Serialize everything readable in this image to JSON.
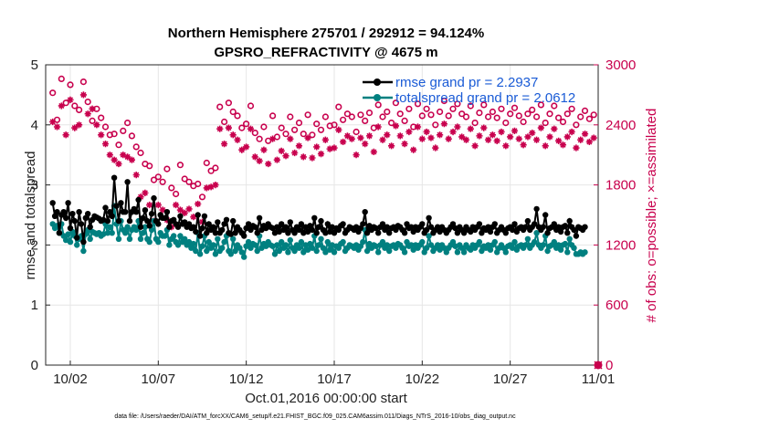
{
  "chart_data": {
    "type": "line",
    "title": [
      "Northern Hemisphere 275701 / 292912 = 94.124%",
      "GPSRO_REFRACTIVITY @ 4675 m"
    ],
    "xlabel": "Oct.01,2016 00:00:00 start",
    "ylabel_left": "rmse and totalspread",
    "ylabel_right": "# of obs: o=possible; ×=assimilated",
    "footer": "data file: /Users/raeder/DAI/ATM_forcXX/CAM6_setup/f.e21.FHIST_BGC.f09_025.CAM6assim.011/Diags_NTrS_2016-10/obs_diag_output.nc",
    "xlim": [
      -0.4,
      31.0
    ],
    "ylim_left": [
      0,
      5
    ],
    "ylim_right": [
      0,
      3000
    ],
    "x_ticks": [
      1,
      6,
      11,
      16,
      21,
      26,
      31
    ],
    "x_tick_labels": [
      "10/02",
      "10/07",
      "10/12",
      "10/17",
      "10/22",
      "10/27",
      "11/01"
    ],
    "y_ticks_left": [
      "0",
      "1",
      "2",
      "3",
      "4",
      "5"
    ],
    "y_ticks_right": [
      "0",
      "600",
      "1200",
      "1800",
      "2400",
      "3000"
    ],
    "legend": [
      "rmse grand pr = 2.2937",
      "totalspread grand pr = 2.0612"
    ],
    "colors": {
      "rmse": "#000000",
      "spread": "#008080",
      "obs": "#c8004d",
      "legend_text": "#1a5bd6"
    },
    "x_start": 0.0,
    "x_step": 0.125,
    "series": [
      {
        "name": "rmse",
        "values": [
          2.7,
          2.48,
          2.55,
          2.2,
          2.5,
          2.55,
          2.45,
          2.7,
          2.28,
          2.52,
          2.4,
          2.12,
          2.55,
          2.35,
          2.05,
          2.45,
          2.52,
          2.3,
          2.42,
          2.48,
          2.46,
          2.44,
          2.4,
          2.42,
          2.62,
          2.4,
          2.55,
          2.48,
          3.12,
          2.65,
          2.4,
          2.7,
          2.55,
          2.55,
          3.05,
          2.4,
          2.55,
          2.6,
          2.55,
          2.75,
          2.3,
          2.45,
          2.58,
          2.4,
          2.32,
          2.52,
          2.78,
          2.4,
          2.35,
          2.5,
          2.45,
          2.45,
          2.55,
          2.3,
          2.4,
          2.42,
          2.35,
          2.3,
          2.48,
          2.35,
          2.38,
          2.3,
          2.35,
          2.28,
          2.3,
          2.22,
          2.5,
          2.15,
          2.28,
          2.48,
          2.2,
          2.35,
          2.25,
          2.3,
          2.2,
          2.38,
          2.2,
          2.25,
          2.35,
          2.42,
          2.2,
          2.18,
          2.4,
          2.2,
          2.3,
          2.25,
          2.2,
          2.15,
          2.28,
          2.35,
          2.25,
          2.32,
          2.3,
          2.2,
          2.45,
          2.25,
          2.32,
          2.28,
          2.35,
          2.3,
          2.28,
          2.2,
          2.3,
          2.22,
          2.35,
          2.25,
          2.3,
          2.2,
          2.38,
          2.25,
          2.2,
          2.3,
          2.25,
          2.35,
          2.2,
          2.3,
          2.22,
          2.32,
          2.25,
          2.45,
          2.2,
          2.3,
          2.4,
          2.25,
          2.2,
          2.35,
          2.22,
          2.3,
          2.2,
          2.28,
          2.25,
          2.32,
          2.35,
          2.2,
          2.25,
          2.3,
          2.28,
          2.25,
          2.3,
          2.22,
          2.28,
          2.35,
          2.55,
          2.2,
          2.32,
          2.25,
          2.3,
          2.28,
          2.2,
          2.3,
          2.35,
          2.25,
          2.3,
          2.2,
          2.28,
          2.3,
          2.25,
          2.32,
          2.3,
          2.25,
          2.2,
          2.35,
          2.28,
          2.3,
          2.22,
          2.3,
          2.25,
          2.3,
          2.35,
          2.2,
          2.25,
          2.45,
          2.3,
          2.2,
          2.25,
          2.3,
          2.22,
          2.3,
          2.25,
          2.2,
          2.25,
          2.3,
          2.35,
          2.28,
          2.2,
          2.3,
          2.25,
          2.2,
          2.3,
          2.25,
          2.22,
          2.3,
          2.25,
          2.3,
          2.35,
          2.2,
          2.28,
          2.25,
          2.3,
          2.22,
          2.3,
          2.35,
          2.2,
          2.25,
          2.3,
          2.25,
          2.2,
          2.28,
          2.3,
          2.25,
          2.35,
          2.22,
          2.28,
          2.3,
          2.25,
          2.3,
          2.4,
          2.25,
          2.3,
          2.35,
          2.6,
          2.3,
          2.25,
          2.3,
          2.5,
          2.2,
          2.28,
          2.3,
          2.35,
          2.25,
          2.3,
          2.22,
          2.3,
          2.32,
          2.2,
          2.4,
          2.3,
          2.25,
          2.15,
          2.3,
          2.28,
          2.25,
          2.3
        ]
      },
      {
        "name": "totalspread",
        "values": [
          2.35,
          2.28,
          2.32,
          2.2,
          2.35,
          2.15,
          2.08,
          2.18,
          2.05,
          2.22,
          2.15,
          2.0,
          2.1,
          2.15,
          1.9,
          2.18,
          2.25,
          2.1,
          2.22,
          2.2,
          2.18,
          2.2,
          2.15,
          2.18,
          2.35,
          2.2,
          2.3,
          2.2,
          2.65,
          2.35,
          2.1,
          2.4,
          2.25,
          2.2,
          2.3,
          2.1,
          2.25,
          2.3,
          2.25,
          2.4,
          2.1,
          2.2,
          2.3,
          2.1,
          2.05,
          2.25,
          2.4,
          2.1,
          2.05,
          2.2,
          2.15,
          2.15,
          2.25,
          2.0,
          2.1,
          2.15,
          2.05,
          2.0,
          2.15,
          2.05,
          2.1,
          2.0,
          2.05,
          1.95,
          2.02,
          1.9,
          2.2,
          1.85,
          1.98,
          2.15,
          1.9,
          2.05,
          1.95,
          2.0,
          1.85,
          2.1,
          1.9,
          1.95,
          2.05,
          2.15,
          1.9,
          1.85,
          2.1,
          1.9,
          2.0,
          1.95,
          1.88,
          1.8,
          1.98,
          2.05,
          1.95,
          2.02,
          2.0,
          1.9,
          2.15,
          1.95,
          2.02,
          1.98,
          2.05,
          2.0,
          1.98,
          1.85,
          2.0,
          1.9,
          2.05,
          1.95,
          2.0,
          1.88,
          2.08,
          1.95,
          1.9,
          2.0,
          1.95,
          2.05,
          1.88,
          2.0,
          1.92,
          2.02,
          1.95,
          2.15,
          1.9,
          2.0,
          2.1,
          1.95,
          1.88,
          2.05,
          1.92,
          2.0,
          1.88,
          1.98,
          1.95,
          2.02,
          2.05,
          1.9,
          1.95,
          2.0,
          1.98,
          1.95,
          2.0,
          1.92,
          1.98,
          2.05,
          2.25,
          1.9,
          2.02,
          1.95,
          2.0,
          1.98,
          1.88,
          2.0,
          2.05,
          1.95,
          2.0,
          1.9,
          1.98,
          2.0,
          1.95,
          2.02,
          2.0,
          1.95,
          1.88,
          2.05,
          1.98,
          2.0,
          1.92,
          2.0,
          1.95,
          2.0,
          2.05,
          1.88,
          1.95,
          2.15,
          2.0,
          1.9,
          1.95,
          2.0,
          1.92,
          2.0,
          1.95,
          1.88,
          1.95,
          2.0,
          2.05,
          1.98,
          1.88,
          2.0,
          1.95,
          1.88,
          2.0,
          1.95,
          1.92,
          2.0,
          1.95,
          2.0,
          2.05,
          1.9,
          1.98,
          1.95,
          2.0,
          1.92,
          2.0,
          2.05,
          1.88,
          1.95,
          2.0,
          1.95,
          1.88,
          1.98,
          2.0,
          1.95,
          2.05,
          1.92,
          1.98,
          2.0,
          1.95,
          2.0,
          2.1,
          1.95,
          2.0,
          2.05,
          2.2,
          2.0,
          1.95,
          2.0,
          2.15,
          1.9,
          1.98,
          2.0,
          2.05,
          1.95,
          2.0,
          1.92,
          2.0,
          2.02,
          1.88,
          2.1,
          2.0,
          1.95,
          1.85,
          1.85,
          1.88,
          1.85,
          1.88
        ]
      },
      {
        "name": "obs_possible",
        "axis": "right",
        "x_start": 0.0,
        "x_step": 0.25,
        "values": [
          2720,
          2450,
          2860,
          2620,
          2800,
          2590,
          2550,
          2830,
          2630,
          2440,
          2560,
          2470,
          2380,
          2300,
          2310,
          2200,
          2340,
          2420,
          2290,
          2180,
          2120,
          2010,
          1990,
          1850,
          1880,
          1830,
          1960,
          1770,
          1710,
          2000,
          1860,
          1830,
          1790,
          1810,
          1680,
          2020,
          1940,
          1970,
          2580,
          2430,
          2620,
          2530,
          2490,
          2370,
          2410,
          2590,
          2320,
          2260,
          2380,
          2240,
          2490,
          2280,
          2370,
          2310,
          2480,
          2350,
          2420,
          2310,
          2500,
          2300,
          2410,
          2350,
          2480,
          2390,
          2400,
          2580,
          2450,
          2510,
          2480,
          2330,
          2500,
          2440,
          2520,
          2370,
          2600,
          2480,
          2530,
          2420,
          2620,
          2510,
          2440,
          2560,
          2380,
          2610,
          2490,
          2560,
          2500,
          2400,
          2530,
          2640,
          2490,
          2560,
          2610,
          2510,
          2480,
          2590,
          2420,
          2520,
          2600,
          2480,
          2530,
          2470,
          2560,
          2420,
          2510,
          2570,
          2490,
          2430,
          2510,
          2550,
          2480,
          2600,
          2420,
          2510,
          2590,
          2470,
          2430,
          2510,
          2560,
          2400,
          2480,
          2540,
          2460,
          2500,
          2380
        ]
      },
      {
        "name": "obs_assimilated",
        "axis": "right",
        "x_start": 0.0,
        "x_step": 0.25,
        "values": [
          2430,
          2380,
          2590,
          2300,
          2650,
          2370,
          2400,
          2700,
          2510,
          2560,
          2400,
          2300,
          2210,
          2100,
          2050,
          2010,
          2100,
          2080,
          2050,
          1900,
          1680,
          1720,
          1600,
          1440,
          1600,
          1550,
          1450,
          1380,
          1600,
          1550,
          1520,
          1560,
          1480,
          1610,
          1430,
          1770,
          1780,
          1800,
          2360,
          2210,
          2370,
          2300,
          2250,
          2150,
          2180,
          2360,
          2080,
          2040,
          2150,
          2010,
          2260,
          2050,
          2140,
          2090,
          2260,
          2120,
          2190,
          2080,
          2270,
          2070,
          2180,
          2110,
          2250,
          2160,
          2170,
          2350,
          2230,
          2290,
          2260,
          2100,
          2270,
          2210,
          2290,
          2130,
          2380,
          2250,
          2300,
          2190,
          2390,
          2290,
          2210,
          2330,
          2150,
          2380,
          2260,
          2330,
          2270,
          2170,
          2300,
          2410,
          2260,
          2330,
          2380,
          2280,
          2250,
          2360,
          2190,
          2290,
          2370,
          2250,
          2300,
          2240,
          2330,
          2190,
          2280,
          2340,
          2260,
          2200,
          2280,
          2320,
          2250,
          2370,
          2190,
          2280,
          2360,
          2240,
          2200,
          2280,
          2330,
          2170,
          2250,
          2310,
          2230,
          2270,
          2150
        ]
      }
    ]
  }
}
